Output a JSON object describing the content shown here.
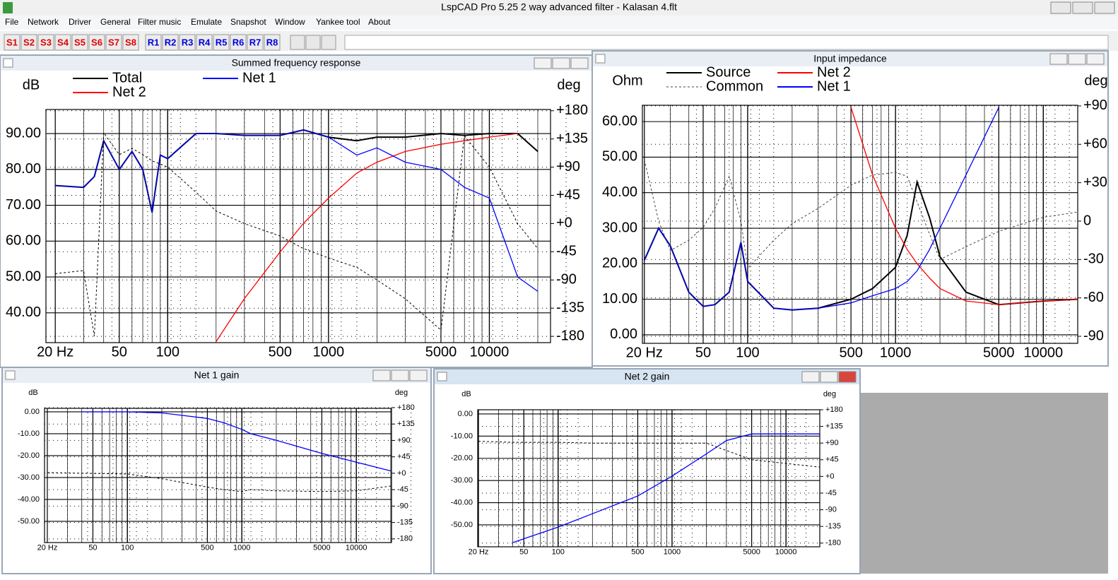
{
  "window": {
    "title": "LspCAD Pro 5.25 2 way advanced filter - Kalasan 4.flt"
  },
  "menu": [
    "File",
    "Network",
    "Driver",
    "General",
    "Filter music",
    "Emulate",
    "Snapshot",
    "Window",
    "Yankee tool",
    "About"
  ],
  "toolbar": {
    "snapshots": [
      "S1",
      "S2",
      "S3",
      "S4",
      "S5",
      "S6",
      "S7",
      "S8"
    ],
    "recalls": [
      "R1",
      "R2",
      "R3",
      "R4",
      "R5",
      "R6",
      "R7",
      "R8"
    ]
  },
  "chart_data": [
    {
      "type": "line",
      "title": "Summed frequency response",
      "y_label": "dB",
      "y2_label": "deg",
      "log_x": true,
      "grid": true,
      "x": [
        20,
        30,
        35,
        40,
        50,
        60,
        70,
        80,
        90,
        100,
        150,
        200,
        300,
        500,
        700,
        1000,
        1500,
        2000,
        3000,
        5000,
        7000,
        10000,
        15000,
        20000
      ],
      "series": [
        {
          "name": "Total",
          "color": "#000000",
          "values": [
            75.5,
            75,
            78,
            88,
            80,
            85,
            80,
            68,
            84,
            83,
            90,
            90,
            89.5,
            89.5,
            91,
            89,
            88,
            89,
            89,
            90,
            89.5,
            90,
            90,
            85
          ]
        },
        {
          "name": "Net 2",
          "color": "#ff0000",
          "values": [
            null,
            null,
            null,
            null,
            null,
            null,
            null,
            null,
            null,
            null,
            null,
            32,
            44,
            57,
            65,
            72,
            79,
            82,
            85,
            87,
            88,
            89,
            90,
            null
          ]
        },
        {
          "name": "Net 1",
          "color": "#0000ff",
          "values": [
            75.5,
            75,
            78,
            88,
            80,
            85,
            80,
            68,
            84,
            83,
            90,
            90,
            89.5,
            89.5,
            91,
            89,
            84,
            86,
            82,
            80,
            75,
            72,
            50,
            46
          ]
        },
        {
          "color": "#000000",
          "axis": "y2",
          "dashed": true,
          "values": [
            -80,
            -75,
            -180,
            145,
            110,
            120,
            110,
            100,
            95,
            90,
            50,
            20,
            0,
            -20,
            -40,
            -55,
            -70,
            -90,
            -120,
            -170,
            140,
            90,
            0,
            -40
          ]
        }
      ],
      "xlim": [
        17.5,
        24000
      ],
      "xticks": [
        {
          "value": 20,
          "label": "20 Hz"
        },
        50,
        100,
        500,
        1000,
        5000,
        10000
      ],
      "ylim": [
        31.7,
        96.7
      ],
      "yticks": [
        {
          "value": 90,
          "label": "90.00"
        },
        {
          "value": 80,
          "label": "80.00"
        },
        {
          "value": 70,
          "label": "70.00"
        },
        {
          "value": 60,
          "label": "60.00"
        },
        {
          "value": 50,
          "label": "50.00"
        },
        {
          "value": 40,
          "label": "40.00"
        }
      ],
      "y2lim": [
        -190,
        182
      ],
      "y2ticks": [
        {
          "value": 180,
          "label": "+180"
        },
        {
          "value": 135,
          "label": "+135"
        },
        {
          "value": 90,
          "label": "+90"
        },
        {
          "value": 45,
          "label": "+45"
        },
        {
          "value": 0,
          "label": "+0"
        },
        -45,
        -90,
        -135,
        -180
      ]
    },
    {
      "type": "line",
      "title": "Input impedance",
      "y_label": "Ohm",
      "y2_label": "deg",
      "log_x": true,
      "grid": true,
      "x": [
        20,
        25,
        30,
        40,
        50,
        60,
        75,
        90,
        100,
        150,
        200,
        300,
        500,
        700,
        1000,
        1200,
        1400,
        1700,
        2000,
        3000,
        5000,
        10000,
        17000
      ],
      "series": [
        {
          "name": "Source",
          "color": "#000000",
          "values": [
            21,
            30,
            25,
            12,
            8,
            8.5,
            12,
            26,
            15,
            7.5,
            7,
            7.5,
            10,
            13,
            19,
            28,
            43,
            33,
            22,
            12,
            8.5,
            9.5,
            10
          ]
        },
        {
          "name": "Common",
          "color": "#444444",
          "axis": "y2",
          "dashed": true,
          "values": [
            48,
            0,
            -23,
            -15,
            -5,
            10,
            35,
            0,
            -37,
            -15,
            -2,
            10,
            28,
            36,
            38,
            35,
            15,
            -10,
            -30,
            -20,
            -8,
            3,
            7
          ]
        },
        {
          "name": "Net 2",
          "color": "#ff0000",
          "values": [
            null,
            null,
            null,
            null,
            null,
            null,
            null,
            null,
            null,
            null,
            null,
            null,
            64,
            45,
            30,
            24,
            20,
            16,
            13,
            9.5,
            8.5,
            9.5,
            10
          ]
        },
        {
          "name": "Net 1",
          "color": "#0000ff",
          "values": [
            21,
            30,
            25,
            12,
            8,
            8.5,
            12,
            26,
            15,
            7.5,
            7,
            7.5,
            9,
            11,
            13,
            15,
            18,
            24,
            30,
            45,
            64,
            null,
            null
          ]
        }
      ],
      "xlim": [
        19.4,
        17100
      ],
      "xticks": [
        {
          "value": 20,
          "label": "20 Hz"
        },
        50,
        100,
        500,
        1000,
        5000,
        10000
      ],
      "ylim": [
        -2.4,
        64.6
      ],
      "yticks": [
        {
          "value": 60,
          "label": "60.00"
        },
        {
          "value": 50,
          "label": "50.00"
        },
        {
          "value": 40,
          "label": "40.00"
        },
        {
          "value": 30,
          "label": "30.00"
        },
        {
          "value": 20,
          "label": "20.00"
        },
        {
          "value": 10,
          "label": "10.00"
        },
        {
          "value": 0,
          "label": "0.00"
        }
      ],
      "y2lim": [
        -95.5,
        90.5
      ],
      "y2ticks": [
        {
          "value": 90,
          "label": "+90"
        },
        {
          "value": 60,
          "label": "+60"
        },
        {
          "value": 30,
          "label": "+30"
        },
        0,
        -30,
        -60,
        -90
      ]
    },
    {
      "type": "line",
      "title": "Net 1 gain",
      "y_label": "dB",
      "y2_label": "deg",
      "log_x": true,
      "grid": true,
      "x": [
        20,
        40,
        100,
        200,
        500,
        700,
        1000,
        1200,
        2000,
        5000,
        10000,
        20000
      ],
      "series": [
        {
          "color": "#0000ff",
          "values": [
            null,
            0,
            0,
            -0.5,
            -3,
            -5,
            -8,
            -10,
            -13,
            -19,
            -23,
            -27
          ]
        },
        {
          "color": "#000000",
          "axis": "y2",
          "dashed": true,
          "values": [
            2,
            0,
            -2,
            -15,
            -38,
            -45,
            -50,
            -45,
            -48,
            -50,
            -48,
            -35
          ]
        }
      ],
      "xlim": [
        18.9,
        20300
      ],
      "xticks": [
        {
          "value": 20,
          "label": "20 Hz"
        },
        50,
        100,
        500,
        1000,
        5000,
        10000
      ],
      "ylim": [
        -59.7,
        1.6
      ],
      "yticks": [
        {
          "value": 0,
          "label": "0.00"
        },
        {
          "value": -10,
          "label": "-10.00"
        },
        {
          "value": -20,
          "label": "-20.00"
        },
        {
          "value": -30,
          "label": "-30.00"
        },
        {
          "value": -40,
          "label": "-40.00"
        },
        {
          "value": -50,
          "label": "-50.00"
        }
      ],
      "y2lim": [
        -190,
        178
      ],
      "y2ticks": [
        {
          "value": 180,
          "label": "+180"
        },
        {
          "value": 135,
          "label": "+135"
        },
        {
          "value": 90,
          "label": "+90"
        },
        {
          "value": 45,
          "label": "+45"
        },
        {
          "value": 0,
          "label": "+0"
        },
        -45,
        -90,
        -135,
        -180
      ]
    },
    {
      "type": "line",
      "title": "Net 2 gain",
      "y_label": "dB",
      "y2_label": "deg",
      "log_x": true,
      "grid": true,
      "x": [
        20,
        40,
        100,
        200,
        500,
        1000,
        2000,
        3000,
        5000,
        10000,
        20000
      ],
      "series": [
        {
          "color": "#0000ff",
          "values": [
            null,
            -58,
            -51,
            -45,
            -37,
            -28,
            -18,
            -12,
            -9,
            -9,
            -9
          ]
        },
        {
          "color": "#000000",
          "axis": "y2",
          "dashed": true,
          "values": [
            95,
            92,
            92,
            90,
            90,
            90,
            90,
            70,
            45,
            35,
            25
          ]
        }
      ],
      "xlim": [
        19.7,
        19800
      ],
      "xticks": [
        {
          "value": 20,
          "label": "20 Hz"
        },
        50,
        100,
        500,
        1000,
        5000,
        10000
      ],
      "ylim": [
        -59.9,
        1.9
      ],
      "yticks": [
        {
          "value": 0,
          "label": "0.00"
        },
        {
          "value": -10,
          "label": "-10.00"
        },
        {
          "value": -20,
          "label": "-20.00"
        },
        {
          "value": -30,
          "label": "-30.00"
        },
        {
          "value": -40,
          "label": "-40.00"
        },
        {
          "value": -50,
          "label": "-50.00"
        }
      ],
      "y2lim": [
        -190,
        180
      ],
      "y2ticks": [
        {
          "value": 180,
          "label": "+180"
        },
        {
          "value": 135,
          "label": "+135"
        },
        {
          "value": 90,
          "label": "+90"
        },
        {
          "value": 45,
          "label": "+45"
        },
        {
          "value": 0,
          "label": "+0"
        },
        -45,
        -90,
        -135,
        -180
      ]
    }
  ]
}
